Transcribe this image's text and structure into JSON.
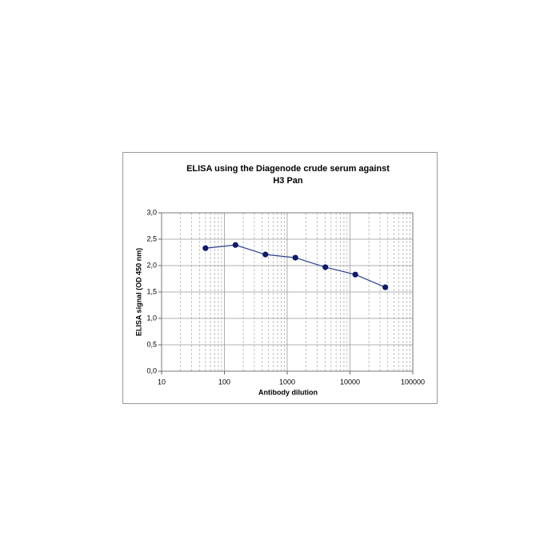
{
  "chart_data": {
    "type": "line",
    "title": [
      "ELISA using the Diagenode crude serum against",
      "H3 Pan"
    ],
    "x_label": "Antibody dilution",
    "y_label": "ELISA signal (OD 450 nm)",
    "x": [
      50,
      150,
      450,
      1350,
      4050,
      12150,
      36450
    ],
    "series": [
      {
        "color": "#101a6a",
        "line_color": "#2b3f8f",
        "values": [
          2.33,
          2.39,
          2.21,
          2.15,
          1.97,
          1.83,
          1.59
        ]
      }
    ],
    "x_log": true,
    "xlim": [
      10,
      100000
    ],
    "xticks": [
      10,
      100,
      1000,
      10000,
      100000
    ],
    "ylim": [
      0,
      3
    ],
    "yticks": [
      {
        "value": 0,
        "label": "0,0"
      },
      {
        "value": 0.5,
        "label": "0,5"
      },
      {
        "value": 1,
        "label": "1,0"
      },
      {
        "value": 1.5,
        "label": "1,5"
      },
      {
        "value": 2,
        "label": "2,0"
      },
      {
        "value": 2.5,
        "label": "2,5"
      },
      {
        "value": 3,
        "label": "3,0"
      }
    ],
    "grid": true
  }
}
